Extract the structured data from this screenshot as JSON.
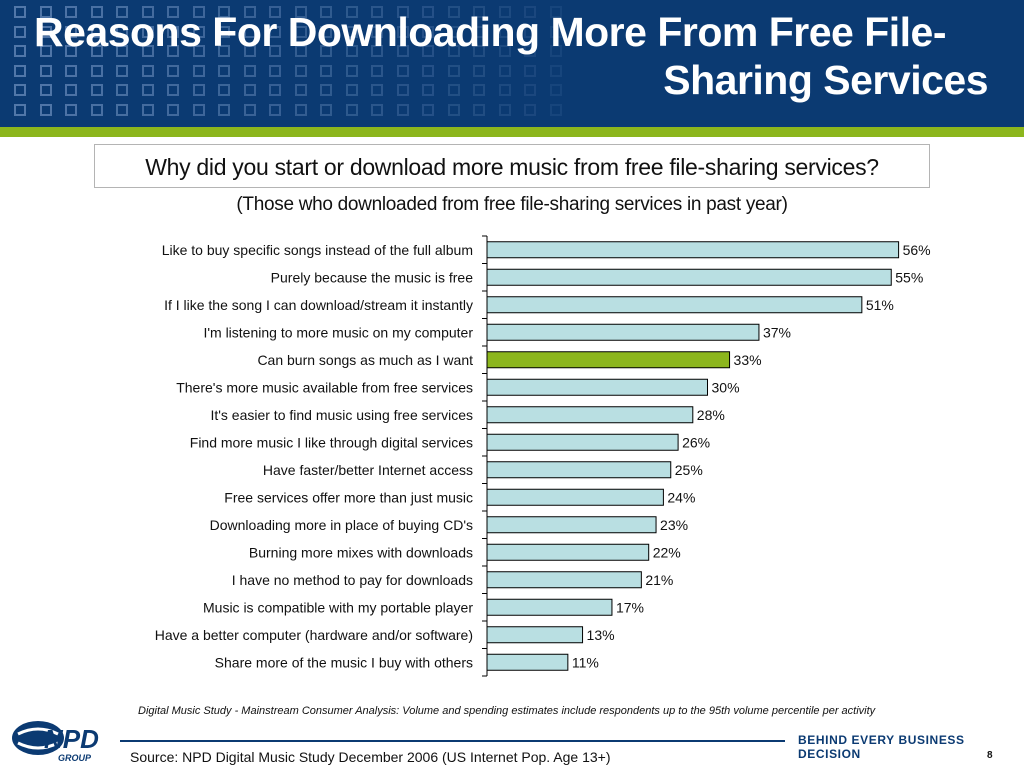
{
  "header": {
    "title_line1": "Reasons For Downloading More From Free File-",
    "title_line2": "Sharing Services"
  },
  "question": "Why did you start or download more music from free file-sharing services?",
  "subtitle": "(Those who downloaded from free file-sharing services in past year)",
  "chart_data": {
    "type": "bar",
    "orientation": "horizontal",
    "categories": [
      "Like to buy specific songs instead of the full album",
      "Purely because the music is free",
      "If I like the song I can download/stream it instantly",
      "I'm listening to more music on my computer",
      "Can burn songs as much as I want",
      "There's more music available from free services",
      "It's easier to find music using free services",
      "Find more music I like through digital services",
      "Have faster/better Internet access",
      "Free services offer more than just music",
      "Downloading more in place of buying CD's",
      "Burning more mixes with downloads",
      "I have no method to pay for downloads",
      "Music is compatible with my portable player",
      "Have a better computer (hardware and/or software)",
      "Share more of the music I buy with others"
    ],
    "values": [
      56,
      55,
      51,
      37,
      33,
      30,
      28,
      26,
      25,
      24,
      23,
      22,
      21,
      17,
      13,
      11
    ],
    "value_labels": [
      "56%",
      "55%",
      "51%",
      "37%",
      "33%",
      "30%",
      "28%",
      "26%",
      "25%",
      "24%",
      "23%",
      "22%",
      "21%",
      "17%",
      "13%",
      "11%"
    ],
    "unit": "%",
    "xlim": [
      0,
      60
    ],
    "highlight_index": 4,
    "bar_color": "#b9dfe2",
    "highlight_color": "#8cb61d",
    "grid": false,
    "legend": "none"
  },
  "footnote": "Digital Music Study - Mainstream Consumer Analysis:  Volume and spending estimates include respondents up to the 95th volume percentile per activity",
  "footer": {
    "logo_text": "NPD",
    "logo_sub": "GROUP",
    "tagline": "BEHIND EVERY BUSINESS DECISION",
    "source": "Source:  NPD Digital Music Study December 2006 (US Internet Pop. Age 13+)",
    "page_number": "8"
  },
  "colors": {
    "header_bg": "#0b3a72",
    "accent_green": "#8cb61d"
  }
}
